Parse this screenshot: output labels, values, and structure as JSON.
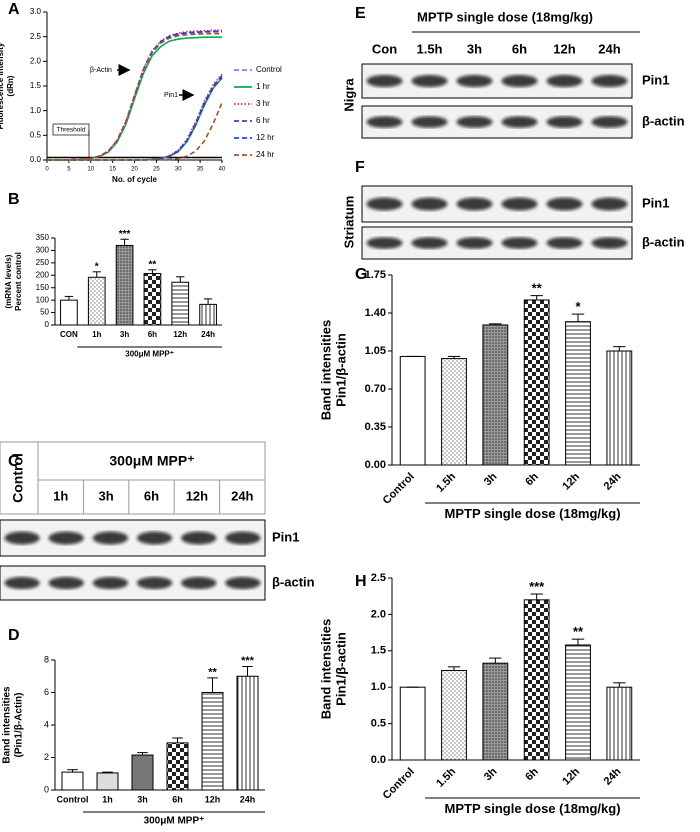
{
  "chart_data": [
    {
      "type": "line",
      "label": "A",
      "xlabel": "No. of cycle",
      "ylabel": [
        "Fluorescence Intensity",
        "(dRn)"
      ],
      "x": [
        0,
        2,
        4,
        6,
        8,
        10,
        12,
        14,
        16,
        18,
        20,
        22,
        24,
        26,
        28,
        30,
        32,
        34,
        36,
        38,
        40
      ],
      "xlim": [
        0,
        40
      ],
      "xticks": [
        0,
        5,
        10,
        15,
        20,
        25,
        30,
        35,
        40
      ],
      "ylim": [
        0,
        3
      ],
      "yticks": [
        {
          "value": 0,
          "label": "0.0"
        },
        {
          "value": 0.5,
          "label": "0.5"
        },
        {
          "value": 1,
          "label": "1.0"
        },
        {
          "value": 1.5,
          "label": "1.5"
        },
        {
          "value": 2,
          "label": "2.0"
        },
        {
          "value": 2.5,
          "label": "2.5"
        },
        {
          "value": 3,
          "label": "3.0"
        }
      ],
      "threshold": 0.05,
      "annotations": [
        "β-Actin",
        "Pin1",
        "Threshold"
      ],
      "series": [
        {
          "name": "Control",
          "color": "#7f7fff",
          "dash": "dashed",
          "values": [
            0,
            0,
            0,
            0.01,
            0.01,
            0.03,
            0.08,
            0.17,
            0.38,
            0.75,
            1.28,
            1.8,
            2.17,
            2.38,
            2.49,
            2.54,
            2.57,
            2.58,
            2.59,
            2.6,
            2.6
          ],
          "pin1_values": [
            0,
            0,
            0,
            0,
            0,
            0,
            0,
            0,
            0,
            0,
            0,
            0,
            0.01,
            0.03,
            0.08,
            0.18,
            0.39,
            0.74,
            1.16,
            1.51,
            1.72
          ]
        },
        {
          "name": "1 hr",
          "color": "#00b050",
          "dash": "solid",
          "values": [
            0,
            0,
            0,
            0,
            0.01,
            0.03,
            0.07,
            0.16,
            0.36,
            0.72,
            1.24,
            1.75,
            2.11,
            2.3,
            2.41,
            2.45,
            2.47,
            2.48,
            2.49,
            2.49,
            2.49
          ],
          "pin1_values": [
            0,
            0,
            0,
            0,
            0,
            0,
            0,
            0,
            0,
            0,
            0,
            0,
            0.01,
            0.03,
            0.07,
            0.17,
            0.37,
            0.71,
            1.12,
            1.46,
            1.66
          ]
        },
        {
          "name": "3 hr",
          "color": "#e03030",
          "dash": "dotted",
          "values": [
            0,
            0,
            0,
            0.01,
            0.01,
            0.03,
            0.08,
            0.18,
            0.4,
            0.78,
            1.31,
            1.84,
            2.21,
            2.41,
            2.52,
            2.57,
            2.6,
            2.61,
            2.62,
            2.63,
            2.63
          ],
          "pin1_values": [
            0,
            0,
            0,
            0,
            0,
            0,
            0,
            0,
            0,
            0,
            0,
            0,
            0.01,
            0.03,
            0.09,
            0.2,
            0.42,
            0.78,
            1.2,
            1.53,
            1.74
          ]
        },
        {
          "name": "6 hr",
          "color": "#7030a0",
          "dash": "dashed",
          "values": [
            0,
            0,
            0,
            0.01,
            0.01,
            0.03,
            0.08,
            0.17,
            0.39,
            0.76,
            1.3,
            1.82,
            2.19,
            2.39,
            2.5,
            2.55,
            2.58,
            2.59,
            2.6,
            2.61,
            2.61
          ],
          "pin1_values": [
            0,
            0,
            0,
            0,
            0,
            0,
            0,
            0,
            0,
            0,
            0,
            0,
            0.01,
            0.03,
            0.08,
            0.19,
            0.4,
            0.75,
            1.17,
            1.5,
            1.7
          ]
        },
        {
          "name": "12 hr",
          "color": "#2040ff",
          "dash": "dashed",
          "values": [
            0,
            0,
            0,
            0.01,
            0.01,
            0.03,
            0.08,
            0.18,
            0.39,
            0.77,
            1.3,
            1.83,
            2.2,
            2.4,
            2.51,
            2.56,
            2.58,
            2.59,
            2.6,
            2.6,
            2.6
          ],
          "pin1_values": [
            0,
            0,
            0,
            0,
            0,
            0,
            0,
            0,
            0,
            0,
            0,
            0,
            0.01,
            0.03,
            0.08,
            0.18,
            0.38,
            0.72,
            1.13,
            1.47,
            1.67
          ]
        },
        {
          "name": "24 hr",
          "color": "#a0522d",
          "dash": "dashed",
          "values": [
            0,
            0,
            0,
            0,
            0.01,
            0.03,
            0.08,
            0.17,
            0.38,
            0.75,
            1.28,
            1.8,
            2.17,
            2.37,
            2.47,
            2.52,
            2.54,
            2.55,
            2.56,
            2.56,
            2.56
          ],
          "pin1_values": [
            0,
            0,
            0,
            0,
            0,
            0,
            0,
            0,
            0,
            0,
            0,
            0,
            0,
            0.01,
            0.01,
            0.03,
            0.08,
            0.18,
            0.39,
            0.74,
            1.16
          ]
        }
      ]
    },
    {
      "type": "bar",
      "label": "B",
      "xlabel": "300μM MPP⁺",
      "ylabel": [
        "(mRNA levels)",
        "Percent control"
      ],
      "categories": [
        "CON",
        "1h",
        "3h",
        "6h",
        "12h",
        "24h"
      ],
      "values": [
        100,
        192,
        320,
        207,
        172,
        83
      ],
      "errors": [
        15,
        22,
        25,
        15,
        22,
        22
      ],
      "significance": [
        null,
        "*",
        "***",
        "**",
        null,
        null
      ],
      "patterns": [
        "white",
        "dots",
        "dense",
        "checker",
        "hlines",
        "vlines"
      ],
      "ylim": [
        0,
        350
      ],
      "yticks": [
        0,
        50,
        100,
        150,
        200,
        250,
        300,
        350
      ]
    },
    {
      "type": "bar",
      "label": "D",
      "xlabel": "300μM MPP⁺",
      "ylabel": [
        "Band intensities",
        "(Pin1/β-Actin)"
      ],
      "categories": [
        "Control",
        "1h",
        "3h",
        "6h",
        "12h",
        "24h"
      ],
      "values": [
        1.1,
        1.05,
        2.15,
        2.9,
        6.0,
        7.0
      ],
      "errors": [
        0.15,
        0.05,
        0.15,
        0.3,
        0.9,
        0.6
      ],
      "significance": [
        null,
        null,
        null,
        null,
        "**",
        "***"
      ],
      "patterns": [
        "white",
        "lightgray",
        "darkgray",
        "checker",
        "hlines",
        "vlines"
      ],
      "ylim": [
        0,
        8
      ],
      "yticks": [
        0,
        2,
        4,
        6,
        8
      ]
    },
    {
      "type": "bar",
      "label": "G",
      "xlabel": "MPTP single dose (18mg/kg)",
      "ylabel": [
        "Band intensities",
        "Pin1/β-actin"
      ],
      "categories": [
        "Control",
        "1.5h",
        "3h",
        "6h",
        "12h",
        "24h"
      ],
      "values": [
        1.0,
        0.98,
        1.29,
        1.52,
        1.32,
        1.05
      ],
      "errors": [
        0,
        0.02,
        0.01,
        0.04,
        0.07,
        0.04
      ],
      "significance": [
        null,
        null,
        null,
        "**",
        "*",
        null
      ],
      "patterns": [
        "white",
        "dots",
        "dense",
        "checker",
        "hlines",
        "vlines"
      ],
      "ylim": [
        0,
        1.75
      ],
      "yticks": [
        {
          "value": 0,
          "label": "0.00"
        },
        {
          "value": 0.35,
          "label": "0.35"
        },
        {
          "value": 0.7,
          "label": "0.70"
        },
        {
          "value": 1.05,
          "label": "1.05"
        },
        {
          "value": 1.4,
          "label": "1.40"
        },
        {
          "value": 1.75,
          "label": "1.75"
        }
      ]
    },
    {
      "type": "bar",
      "label": "H",
      "xlabel": "MPTP single dose (18mg/kg)",
      "ylabel": [
        "Band intensities",
        "Pin1/β-actin"
      ],
      "categories": [
        "Control",
        "1.5h",
        "3h",
        "6h",
        "12h",
        "24h"
      ],
      "values": [
        1.0,
        1.23,
        1.33,
        2.2,
        1.58,
        1.0
      ],
      "errors": [
        0,
        0.05,
        0.07,
        0.08,
        0.08,
        0.06
      ],
      "significance": [
        null,
        null,
        null,
        "***",
        "**",
        null
      ],
      "patterns": [
        "white",
        "dots",
        "dense",
        "checker",
        "hlines",
        "vlines"
      ],
      "ylim": [
        0,
        2.5
      ],
      "yticks": [
        {
          "value": 0,
          "label": "0.0"
        },
        {
          "value": 0.5,
          "label": "0.5"
        },
        {
          "value": 1,
          "label": "1.0"
        },
        {
          "value": 1.5,
          "label": "1.5"
        },
        {
          "value": 2,
          "label": "2.0"
        },
        {
          "value": 2.5,
          "label": "2.5"
        }
      ]
    }
  ],
  "blots": [
    {
      "label": "C",
      "control": "Control",
      "header": "300μM MPP⁺",
      "lanes": [
        "1h",
        "3h",
        "6h",
        "12h",
        "24h"
      ],
      "rows": [
        "Pin1",
        "β-actin"
      ]
    },
    {
      "label": "E",
      "header": "MPTP single dose (18mg/kg)",
      "lanes": [
        "Con",
        "1.5h",
        "3h",
        "6h",
        "12h",
        "24h"
      ],
      "side": "Nigra",
      "rows": [
        "Pin1",
        "β-actin"
      ]
    },
    {
      "label": "F",
      "side": "Striatum",
      "rows": [
        "Pin1",
        "β-actin"
      ]
    }
  ]
}
